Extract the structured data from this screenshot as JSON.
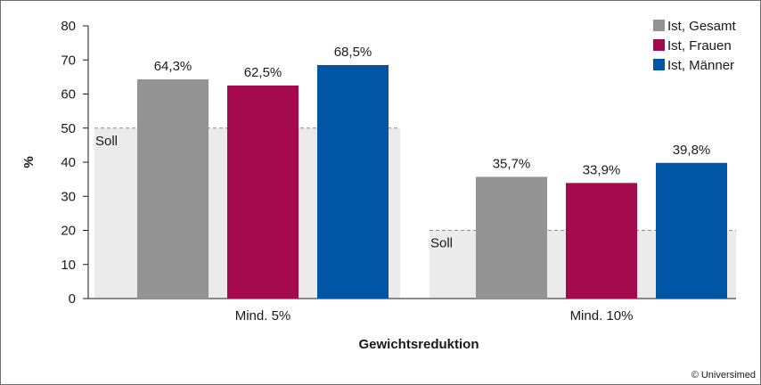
{
  "chart_data": {
    "type": "bar",
    "xlabel": "Gewichtsreduktion",
    "ylabel": "%",
    "ylim": [
      0,
      80
    ],
    "yticks": [
      0,
      10,
      20,
      30,
      40,
      50,
      60,
      70,
      80
    ],
    "grid": false,
    "legend_position": "top-right",
    "categories": [
      "Mind. 5%",
      "Mind. 10%"
    ],
    "series": [
      {
        "name": "Ist, Gesamt",
        "values": [
          64.3,
          35.7
        ],
        "labels": [
          "64,3%",
          "35,7%"
        ],
        "color": "#939393"
      },
      {
        "name": "Ist, Frauen",
        "values": [
          62.5,
          33.9
        ],
        "labels": [
          "62,5%",
          "33,9%"
        ],
        "color": "#a50a4f"
      },
      {
        "name": "Ist, Männer",
        "values": [
          68.5,
          39.8
        ],
        "labels": [
          "68,5%",
          "39,8%"
        ],
        "color": "#0055a5"
      }
    ],
    "targets": [
      {
        "label": "Soll",
        "value": 50
      },
      {
        "label": "Soll",
        "value": 20
      }
    ],
    "target_fill_color": "#ebebeb",
    "target_line_color": "#8a8a8a"
  },
  "credit": "© Universimed"
}
